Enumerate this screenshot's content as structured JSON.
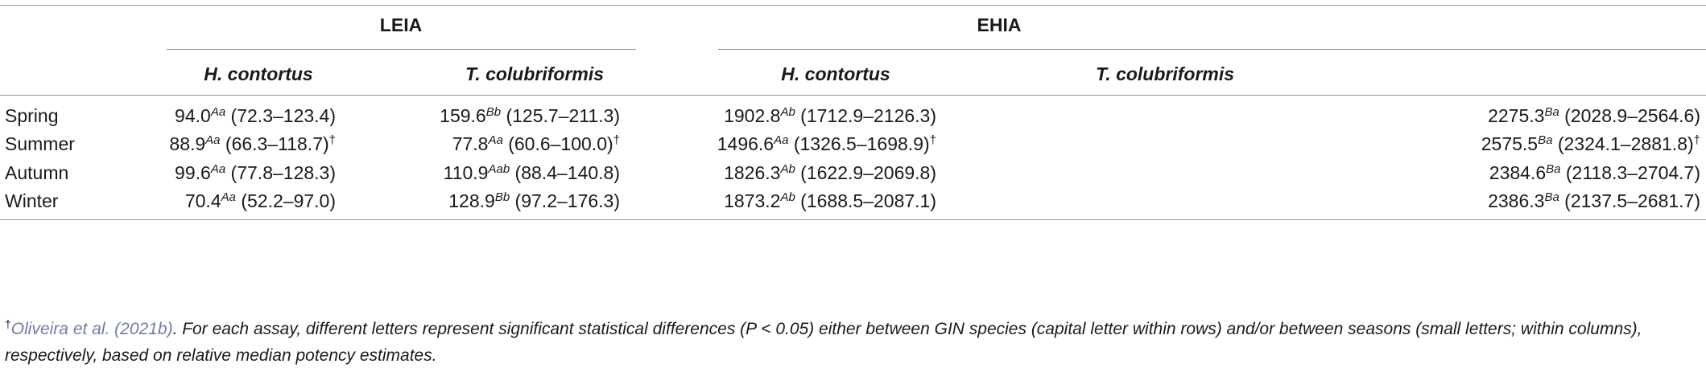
{
  "header": {
    "group1": "LEIA",
    "group2": "EHIA",
    "sub": [
      "H. contortus",
      "T. colubriformis",
      "H. contortus",
      "T. colubriformis"
    ]
  },
  "rows": [
    {
      "label": "Spring",
      "cells": [
        {
          "val": "94.0",
          "sup": "Aa",
          "ci": " (72.3–123.4)",
          "dag": ""
        },
        {
          "val": "159.6",
          "sup": "Bb",
          "ci": " (125.7–211.3)",
          "dag": ""
        },
        {
          "val": "1902.8",
          "sup": "Ab",
          "ci": " (1712.9–2126.3)",
          "dag": ""
        },
        {
          "val": "2275.3",
          "sup": "Ba",
          "ci": " (2028.9–2564.6)",
          "dag": ""
        }
      ]
    },
    {
      "label": "Summer",
      "cells": [
        {
          "val": "88.9",
          "sup": "Aa",
          "ci": " (66.3–118.7)",
          "dag": "†"
        },
        {
          "val": "77.8",
          "sup": "Aa",
          "ci": " (60.6–100.0)",
          "dag": "†"
        },
        {
          "val": "1496.6",
          "sup": "Aa",
          "ci": " (1326.5–1698.9)",
          "dag": "†"
        },
        {
          "val": "2575.5",
          "sup": "Ba",
          "ci": " (2324.1–2881.8)",
          "dag": "†"
        }
      ]
    },
    {
      "label": "Autumn",
      "cells": [
        {
          "val": "99.6",
          "sup": "Aa",
          "ci": " (77.8–128.3)",
          "dag": ""
        },
        {
          "val": "110.9",
          "sup": "Aab",
          "ci": " (88.4–140.8)",
          "dag": ""
        },
        {
          "val": "1826.3",
          "sup": "Ab",
          "ci": " (1622.9–2069.8)",
          "dag": ""
        },
        {
          "val": "2384.6",
          "sup": "Ba",
          "ci": " (2118.3–2704.7)",
          "dag": ""
        }
      ]
    },
    {
      "label": "Winter",
      "cells": [
        {
          "val": "70.4",
          "sup": "Aa",
          "ci": " (52.2–97.0)",
          "dag": ""
        },
        {
          "val": "128.9",
          "sup": "Bb",
          "ci": " (97.2–176.3)",
          "dag": ""
        },
        {
          "val": "1873.2",
          "sup": "Ab",
          "ci": " (1688.5–2087.1)",
          "dag": ""
        },
        {
          "val": "2386.3",
          "sup": "Ba",
          "ci": " (2137.5–2681.7)",
          "dag": ""
        }
      ]
    }
  ],
  "footnote": {
    "dagger": "†",
    "cite": "Oliveira et al. (2021b)",
    "text": ". For each assay, different letters represent significant statistical differences (P < 0.05) either between GIN species (capital letter within rows) and/or between seasons (small letters; within columns), respectively, based on relative median potency estimates."
  }
}
